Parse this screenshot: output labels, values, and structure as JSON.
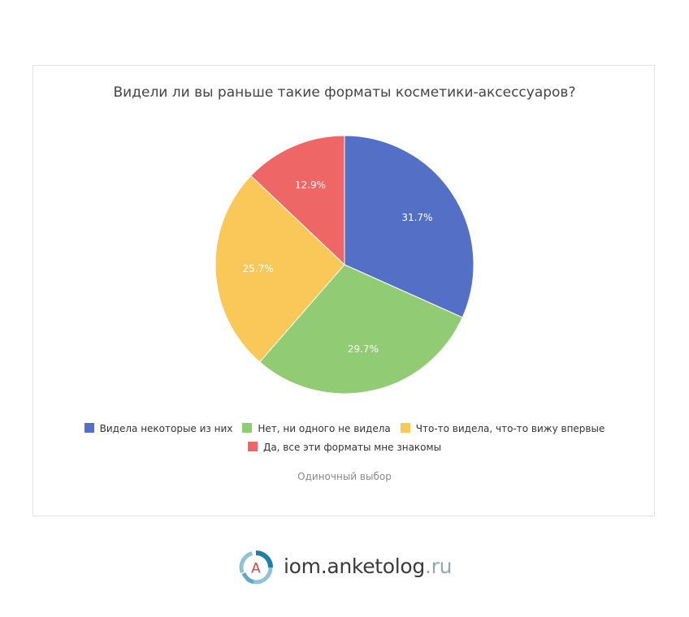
{
  "chart_data": {
    "type": "pie",
    "title": "Видели ли вы раньше такие форматы косметики-аксессуаров?",
    "subtitle": "Одиночный выбор",
    "slices": [
      {
        "label": "Видела некоторые из них",
        "value": 31.7,
        "display": "31.7%",
        "color": "#5470c6"
      },
      {
        "label": "Нет, ни одного не видела",
        "value": 29.7,
        "display": "29.7%",
        "color": "#91cc75"
      },
      {
        "label": "Что-то видела, что-то вижу впервые",
        "value": 25.7,
        "display": "25.7%",
        "color": "#fac858"
      },
      {
        "label": "Да, все эти форматы мне знакомы",
        "value": 12.9,
        "display": "12.9%",
        "color": "#ee6666"
      }
    ],
    "legend_position": "bottom"
  },
  "footer": {
    "logo_letter": "A",
    "brand": "iom.anketolog",
    "tld": ".ru"
  }
}
